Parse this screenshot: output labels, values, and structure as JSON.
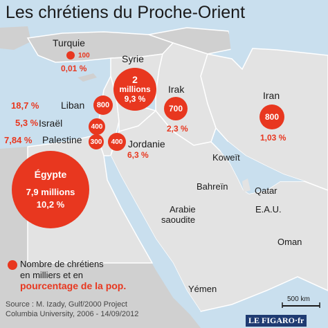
{
  "title": "Les chrétiens du Proche-Orient",
  "colors": {
    "accent": "#e8371f",
    "sea": "#c9dfee",
    "land": "#e3e3e3",
    "foreign_land": "#d0d0d0",
    "border": "#ffffff"
  },
  "regions": [
    {
      "id": "turquie",
      "name": "Turquie",
      "christians": "100",
      "percent": "0,01 %"
    },
    {
      "id": "syrie",
      "name": "Syrie",
      "christians_line1": "2",
      "christians_line2": "millions",
      "percent": "9,3 %"
    },
    {
      "id": "irak",
      "name": "Irak",
      "christians": "700",
      "percent": "2,3 %"
    },
    {
      "id": "iran",
      "name": "Iran",
      "christians": "800",
      "percent": "1,03 %"
    },
    {
      "id": "liban",
      "name": "Liban",
      "christians": "800",
      "percent": "18,7 %"
    },
    {
      "id": "israel",
      "name": "Israël",
      "christians": "400",
      "percent": "5,3 %"
    },
    {
      "id": "palestine",
      "name": "Palestine",
      "christians": "300",
      "percent": "7,84 %"
    },
    {
      "id": "jordanie",
      "name": "Jordanie",
      "christians": "400",
      "percent": "6,3 %"
    },
    {
      "id": "egypte",
      "name": "Égypte",
      "christians": "7,9 millions",
      "percent": "10,2 %"
    }
  ],
  "other_labels": {
    "koweit": "Koweït",
    "bahrein": "Bahreïn",
    "qatar": "Qatar",
    "eau": "E.A.U.",
    "arabie_line1": "Arabie",
    "arabie_line2": "saoudite",
    "oman": "Oman",
    "yemen": "Yémen"
  },
  "legend": {
    "line1": "Nombre de chrétiens",
    "line2": "en milliers et en",
    "line3": "pourcentage de la pop."
  },
  "source": {
    "line1": "Source : M. Izady, Gulf/2000 Project",
    "line2": "Columbia University, 2006 - 14/09/2012"
  },
  "scale_label": "500 km",
  "logo": "LE FIGARO·fr"
}
